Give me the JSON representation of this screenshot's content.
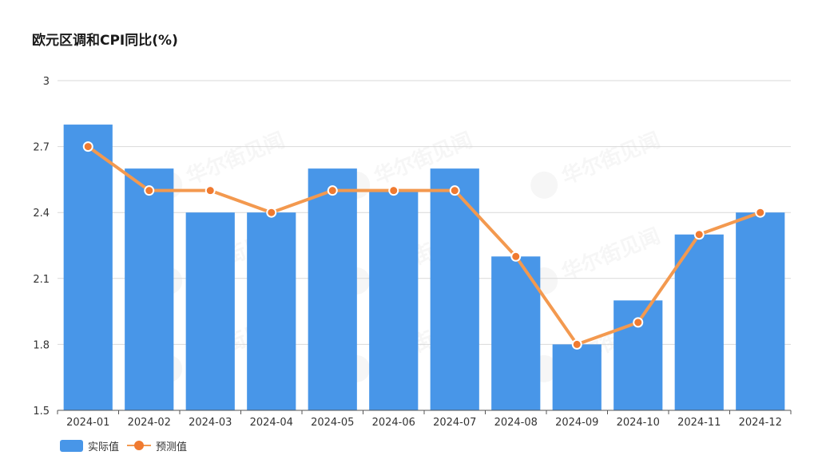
{
  "title": "欧元区调和CPI同比(%)",
  "watermark": "华尔街见闻",
  "colors": {
    "bar": "#4896e8",
    "line": "#f3994f",
    "line_dot": "#f07a30",
    "grid": "#d9d9d9",
    "axis": "#555555"
  },
  "legend": {
    "actual_label": "实际值",
    "forecast_label": "预测值"
  },
  "chart_data": {
    "type": "bar",
    "title": "欧元区调和CPI同比(%)",
    "xlabel": "",
    "ylabel": "",
    "categories": [
      "2024-01",
      "2024-02",
      "2024-03",
      "2024-04",
      "2024-05",
      "2024-06",
      "2024-07",
      "2024-08",
      "2024-09",
      "2024-10",
      "2024-11",
      "2024-12"
    ],
    "ylim": [
      1.5,
      3
    ],
    "yticks": [
      "1.5",
      "1.8",
      "2.1",
      "2.4",
      "2.7",
      "3"
    ],
    "grid": true,
    "legend_position": "bottom-left",
    "series": [
      {
        "name": "实际值",
        "type": "bar",
        "values": [
          2.8,
          2.6,
          2.4,
          2.4,
          2.6,
          2.5,
          2.6,
          2.2,
          1.8,
          2.0,
          2.3,
          2.4
        ]
      },
      {
        "name": "预测值",
        "type": "line",
        "values": [
          2.7,
          2.5,
          2.5,
          2.4,
          2.5,
          2.5,
          2.5,
          2.2,
          1.8,
          1.9,
          2.3,
          2.4
        ]
      }
    ]
  }
}
